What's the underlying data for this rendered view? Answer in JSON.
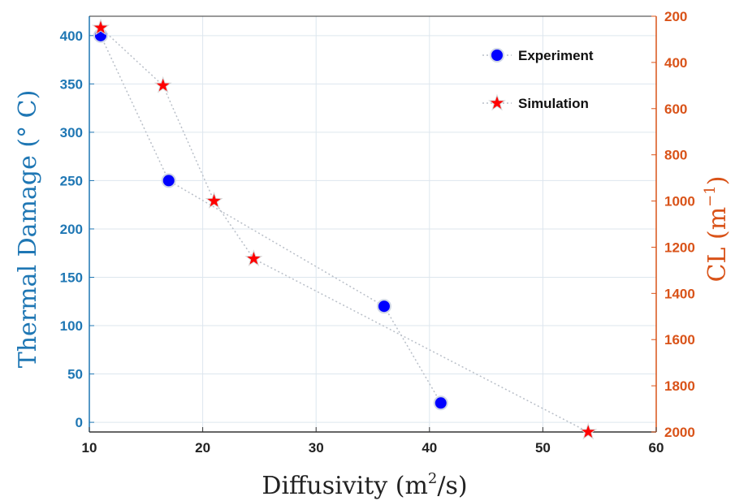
{
  "chart_data": {
    "type": "scatter",
    "xlabel": "Diffusivity (m",
    "xlabel_sup": "2",
    "xlabel_tail": "/s)",
    "ylabel_left": "Thermal Damage (° C)",
    "ylabel_right": "CL (m",
    "ylabel_right_sup": "−1",
    "ylabel_right_tail": ")",
    "xlim": [
      10,
      60
    ],
    "ylim_left": [
      -10,
      420
    ],
    "ylim_right": [
      2000,
      200
    ],
    "x_ticks": [
      "10",
      "20",
      "30",
      "40",
      "50",
      "60"
    ],
    "y_left_ticks": [
      "0",
      "50",
      "100",
      "150",
      "200",
      "250",
      "300",
      "350",
      "400"
    ],
    "y_right_ticks": [
      "200",
      "400",
      "600",
      "800",
      "1000",
      "1200",
      "1400",
      "1600",
      "1800",
      "2000"
    ],
    "grid": true,
    "legend_position": "top-right",
    "series": [
      {
        "name": "Experiment",
        "axis": "left",
        "marker": "circle",
        "color": "#0000ff",
        "x": [
          11,
          17,
          36,
          41
        ],
        "y": [
          400,
          250,
          120,
          20
        ]
      },
      {
        "name": "Simulation",
        "axis": "right",
        "marker": "star",
        "color": "#ff0000",
        "x": [
          11,
          16.5,
          21,
          24.5,
          54
        ],
        "y": [
          250,
          500,
          1000,
          1250,
          2000
        ]
      }
    ],
    "colors": {
      "left_axis": "#1f77b4",
      "right_axis": "#d95319",
      "grid": "#dde6ee",
      "line": "#b9bfc8"
    }
  }
}
